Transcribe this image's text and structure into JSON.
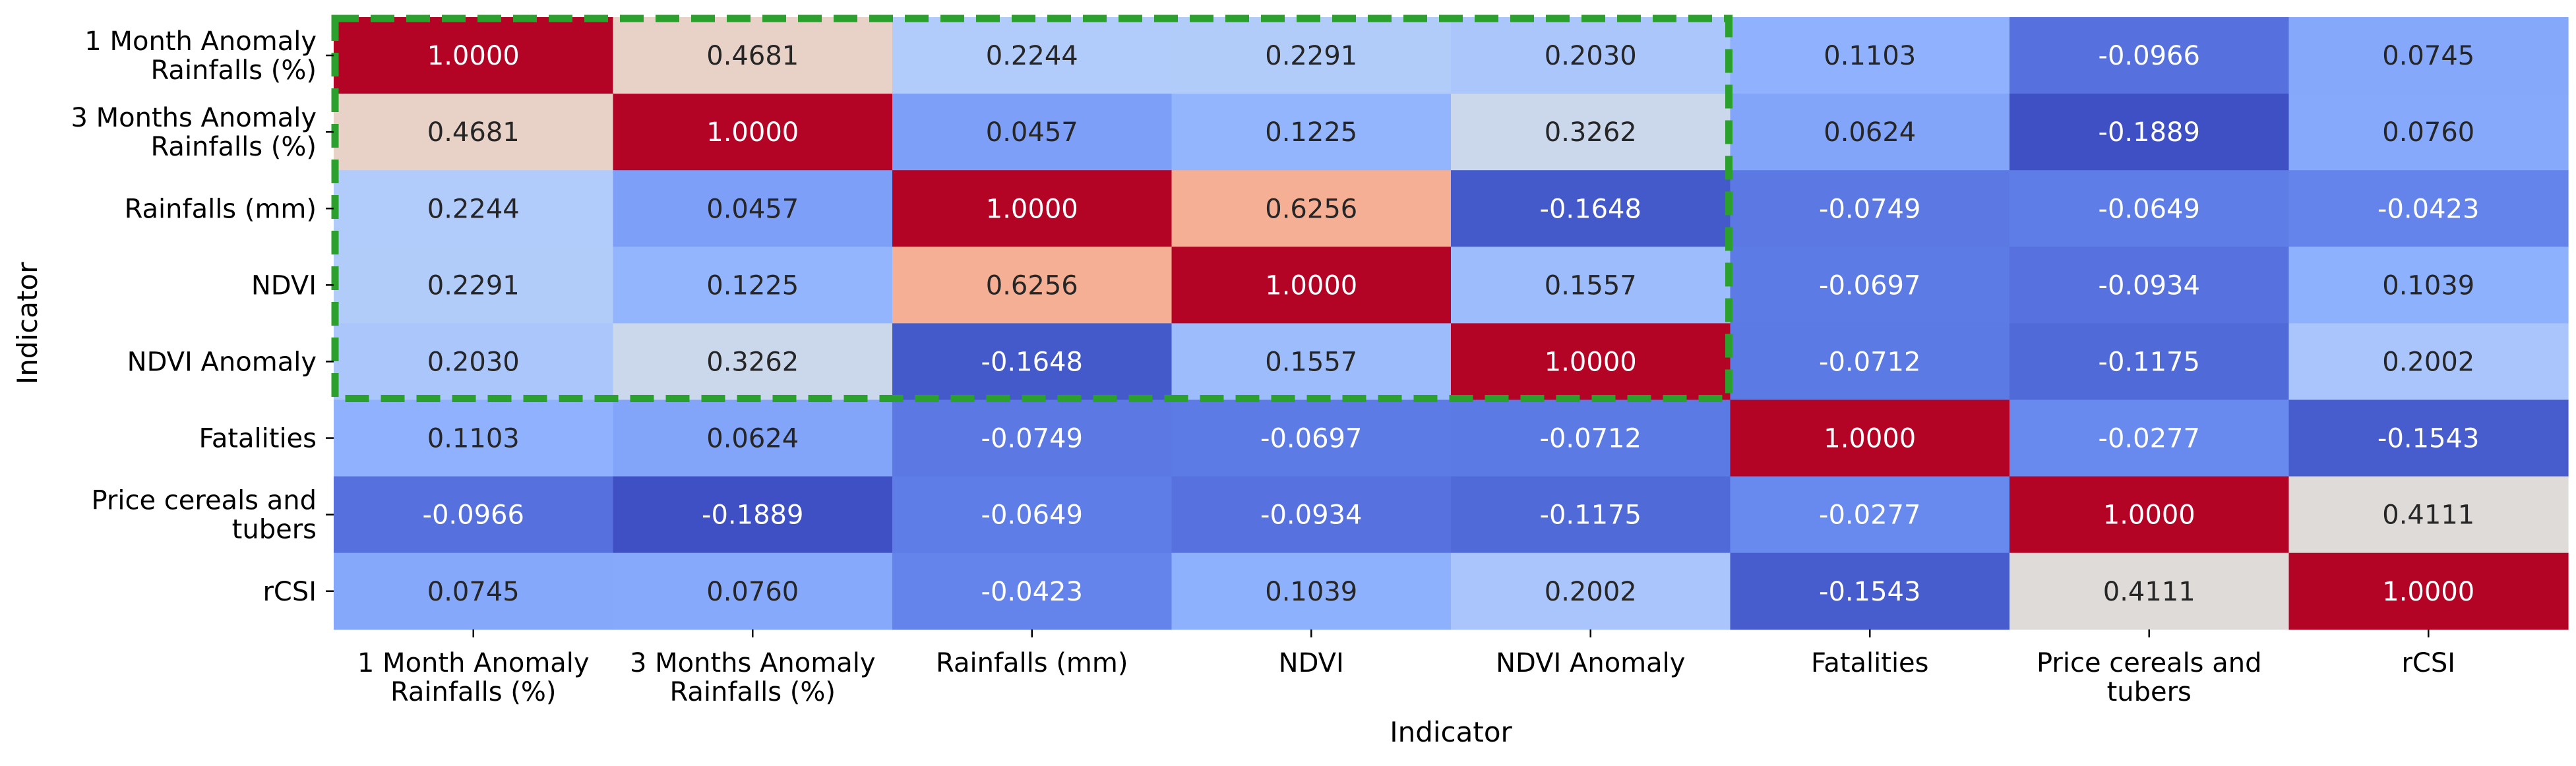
{
  "chart_data": {
    "type": "heatmap",
    "title": "",
    "xlabel": "Indicator",
    "ylabel": "Indicator",
    "categories": [
      [
        "1 Month Anomaly",
        "Rainfalls (%)"
      ],
      [
        "3 Months Anomaly",
        "Rainfalls (%)"
      ],
      [
        "Rainfalls (mm)"
      ],
      [
        "NDVI"
      ],
      [
        "NDVI Anomaly"
      ],
      [
        "Fatalities"
      ],
      [
        "Price cereals and",
        "tubers"
      ],
      [
        "rCSI"
      ]
    ],
    "values": [
      [
        "1.0000",
        "0.4681",
        "0.2244",
        "0.2291",
        "0.2030",
        "0.1103",
        "-0.0966",
        "0.0745"
      ],
      [
        "0.4681",
        "1.0000",
        "0.0457",
        "0.1225",
        "0.3262",
        "0.0624",
        "-0.1889",
        "0.0760"
      ],
      [
        "0.2244",
        "0.0457",
        "1.0000",
        "0.6256",
        "-0.1648",
        "-0.0749",
        "-0.0649",
        "-0.0423"
      ],
      [
        "0.2291",
        "0.1225",
        "0.6256",
        "1.0000",
        "0.1557",
        "-0.0697",
        "-0.0934",
        "0.1039"
      ],
      [
        "0.2030",
        "0.3262",
        "-0.1648",
        "0.1557",
        "1.0000",
        "-0.0712",
        "-0.1175",
        "0.2002"
      ],
      [
        "0.1103",
        "0.0624",
        "-0.0749",
        "-0.0697",
        "-0.0712",
        "1.0000",
        "-0.0277",
        "-0.1543"
      ],
      [
        "-0.0966",
        "-0.1889",
        "-0.0649",
        "-0.0934",
        "-0.1175",
        "-0.0277",
        "1.0000",
        "0.4111"
      ],
      [
        "0.0745",
        "0.0760",
        "-0.0423",
        "0.1039",
        "0.2002",
        "-0.1543",
        "0.4111",
        "1.0000"
      ]
    ],
    "colormap": "coolwarm",
    "colorbar": false,
    "grid": false,
    "highlight": {
      "rows": [
        0,
        4
      ],
      "cols": [
        0,
        4
      ],
      "style": "dashed",
      "color": "#2ca02c"
    }
  }
}
